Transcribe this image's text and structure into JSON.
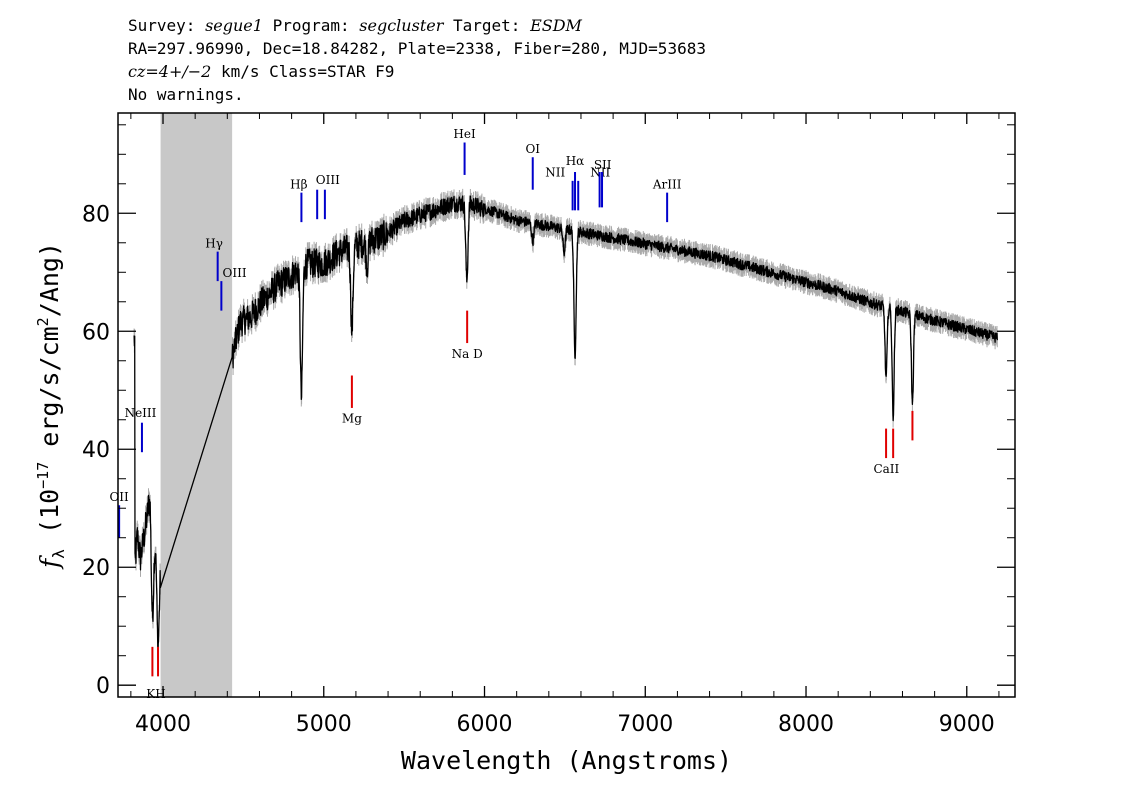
{
  "header": {
    "survey_label": "Survey:",
    "survey": "segue1",
    "program_label": "Program:",
    "program": "segcluster",
    "target_label": "Target:",
    "target": "ESDM",
    "line2": "RA=297.96990, Dec=18.84282, Plate=2338, Fiber=280, MJD=53683",
    "cz": "cz=4+/−2",
    "line3_rest": " km/s Class=STAR F9",
    "line4": "No warnings."
  },
  "chart_data": {
    "type": "line",
    "xlabel": "Wavelength (Angstroms)",
    "ylabel_parts": {
      "f": "f",
      "sub": "λ",
      "pre": " (10",
      "exp": "−17",
      "mid": " erg/s/cm",
      "exp2": "2",
      "post": "/Ang)"
    },
    "xlim": [
      3720,
      9300
    ],
    "ylim": [
      -2,
      97
    ],
    "xticks": [
      4000,
      5000,
      6000,
      7000,
      8000,
      9000
    ],
    "yticks": [
      0,
      20,
      40,
      60,
      80
    ],
    "masked_region": [
      3985,
      4430
    ],
    "series_color": "#000000",
    "error_color": "#aaaaaa",
    "mask_color": "#c8c8c8",
    "emission_color": "#0000cc",
    "absorption_color": "#e00000",
    "continuum": [
      [
        3825,
        20
      ],
      [
        3840,
        26
      ],
      [
        3860,
        22
      ],
      [
        3890,
        27
      ],
      [
        3920,
        33
      ],
      [
        3950,
        25
      ],
      [
        3985,
        20
      ],
      [
        4430,
        56
      ],
      [
        4480,
        62
      ],
      [
        4550,
        63
      ],
      [
        4600,
        65
      ],
      [
        4700,
        68
      ],
      [
        4800,
        70
      ],
      [
        4900,
        72
      ],
      [
        5000,
        72
      ],
      [
        5100,
        74
      ],
      [
        5200,
        75
      ],
      [
        5300,
        76
      ],
      [
        5400,
        77
      ],
      [
        5500,
        79
      ],
      [
        5600,
        80
      ],
      [
        5700,
        81
      ],
      [
        5800,
        82
      ],
      [
        5900,
        82
      ],
      [
        6000,
        81
      ],
      [
        6100,
        80
      ],
      [
        6200,
        79
      ],
      [
        6300,
        78.5
      ],
      [
        6400,
        78
      ],
      [
        6500,
        77.5
      ],
      [
        6600,
        77
      ],
      [
        6700,
        76.5
      ],
      [
        6800,
        76
      ],
      [
        6900,
        75.5
      ],
      [
        7000,
        75
      ],
      [
        7100,
        74.5
      ],
      [
        7200,
        74
      ],
      [
        7400,
        73
      ],
      [
        7600,
        71.5
      ],
      [
        7800,
        70
      ],
      [
        8000,
        68.5
      ],
      [
        8200,
        67
      ],
      [
        8400,
        65
      ],
      [
        8600,
        63.5
      ],
      [
        8800,
        62
      ],
      [
        9000,
        60.5
      ],
      [
        9200,
        59
      ]
    ],
    "absorption_features": [
      {
        "wave": 3934,
        "depth": 17
      },
      {
        "wave": 3969,
        "depth": 15
      },
      {
        "wave": 4861,
        "depth": 22
      },
      {
        "wave": 5175,
        "depth": 14
      },
      {
        "wave": 5270,
        "depth": 4
      },
      {
        "wave": 5890,
        "depth": 13
      },
      {
        "wave": 6563,
        "depth": 21
      },
      {
        "wave": 8498,
        "depth": 12
      },
      {
        "wave": 8542,
        "depth": 18
      },
      {
        "wave": 8662,
        "depth": 15
      },
      {
        "wave": 6495,
        "depth": 4
      },
      {
        "wave": 6300,
        "depth": 3
      }
    ],
    "line_markers": [
      {
        "label": "OII",
        "wave": 3727,
        "kind": "emission",
        "y1": 25,
        "y2": 30.5,
        "label_y": 31.2,
        "label_x": 3727,
        "anchor": "middle"
      },
      {
        "label": "NeIII",
        "wave": 3869,
        "kind": "emission",
        "y1": 39.5,
        "y2": 44.5,
        "label_y": 45.5,
        "label_x": 3860,
        "anchor": "middle"
      },
      {
        "label": "K",
        "wave": 3934,
        "kind": "absorption",
        "y1": 1.5,
        "y2": 6.5,
        "label_y": -2.2,
        "label_x": 3924,
        "anchor": "middle"
      },
      {
        "label": "H",
        "wave": 3969,
        "kind": "absorption",
        "y1": 1.5,
        "y2": 6.5,
        "label_y": -2.2,
        "label_x": 3984,
        "anchor": "middle"
      },
      {
        "label": "Hγ",
        "wave": 4340,
        "kind": "emission",
        "y1": 68.5,
        "y2": 73.5,
        "label_y": 74.2,
        "label_x": 4318,
        "anchor": "middle"
      },
      {
        "label": "OIII",
        "wave": 4363,
        "kind": "emission",
        "y1": 63.5,
        "y2": 68.5,
        "label_y": 69.2,
        "label_x": 4445,
        "anchor": "middle"
      },
      {
        "label": "Hβ",
        "wave": 4861,
        "kind": "emission",
        "y1": 78.5,
        "y2": 83.5,
        "label_y": 84.2,
        "label_x": 4845,
        "anchor": "middle"
      },
      {
        "label": "OIII",
        "wave": 4959,
        "kind": "emission",
        "y1": 79,
        "y2": 84,
        "label_y": 85,
        "label_x": 5025,
        "anchor": "middle"
      },
      {
        "label": "OIII",
        "wave": 5007,
        "kind": "emission",
        "y1": 79,
        "y2": 84,
        "label_y": 85,
        "label_x": 5025,
        "anchor": "end_hidden"
      },
      {
        "label": "Mg",
        "wave": 5175,
        "kind": "absorption",
        "y1": 47,
        "y2": 52.5,
        "label_y": 44.5,
        "label_x": 5175,
        "anchor": "middle"
      },
      {
        "label": "HeI",
        "wave": 5876,
        "kind": "emission",
        "y1": 86.5,
        "y2": 92,
        "label_y": 92.8,
        "label_x": 5876,
        "anchor": "middle"
      },
      {
        "label": "Na  D",
        "wave": 5892,
        "kind": "absorption",
        "y1": 58,
        "y2": 63.5,
        "label_y": 55.5,
        "label_x": 5892,
        "anchor": "middle"
      },
      {
        "label": "OI",
        "wave": 6300,
        "kind": "emission",
        "y1": 84,
        "y2": 89.5,
        "label_y": 90.2,
        "label_x": 6300,
        "anchor": "middle"
      },
      {
        "label": "NII",
        "wave": 6548,
        "kind": "emission",
        "y1": 80.5,
        "y2": 85.5,
        "label_y": 86.2,
        "label_x": 6440,
        "anchor": "middle"
      },
      {
        "label": "Hα",
        "wave": 6563,
        "kind": "emission",
        "y1": 80.5,
        "y2": 87,
        "label_y": 88.2,
        "label_x": 6563,
        "anchor": "middle"
      },
      {
        "label": "NII",
        "wave": 6583,
        "kind": "emission",
        "y1": 80.5,
        "y2": 85.5,
        "label_y": 86.2,
        "label_x": 6720,
        "anchor": "middle"
      },
      {
        "label": "SII",
        "wave": 6716,
        "kind": "emission",
        "y1": 81,
        "y2": 87,
        "label_y": 87.5,
        "label_x": 6735,
        "anchor": "middle"
      },
      {
        "label": "SII",
        "wave": 6731,
        "kind": "emission",
        "y1": 81,
        "y2": 87,
        "label_y": 87.5,
        "label_x": 6735,
        "anchor": "end_hidden"
      },
      {
        "label": "ArIII",
        "wave": 7136,
        "kind": "emission",
        "y1": 78.5,
        "y2": 83.5,
        "label_y": 84.2,
        "label_x": 7136,
        "anchor": "middle"
      },
      {
        "label": "CaII",
        "wave": 8498,
        "kind": "absorption",
        "y1": 38.5,
        "y2": 43.5,
        "label_y": 36,
        "label_x": 8500,
        "anchor": "middle"
      },
      {
        "label": "CaII",
        "wave": 8542,
        "kind": "absorption",
        "y1": 38.5,
        "y2": 43.5,
        "label_y": 36,
        "label_x": 8500,
        "anchor": "end_hidden"
      },
      {
        "label": "CaII",
        "wave": 8662,
        "kind": "absorption",
        "y1": 41.5,
        "y2": 46.5,
        "label_y": 36,
        "label_x": 8500,
        "anchor": "end_hidden"
      }
    ]
  }
}
